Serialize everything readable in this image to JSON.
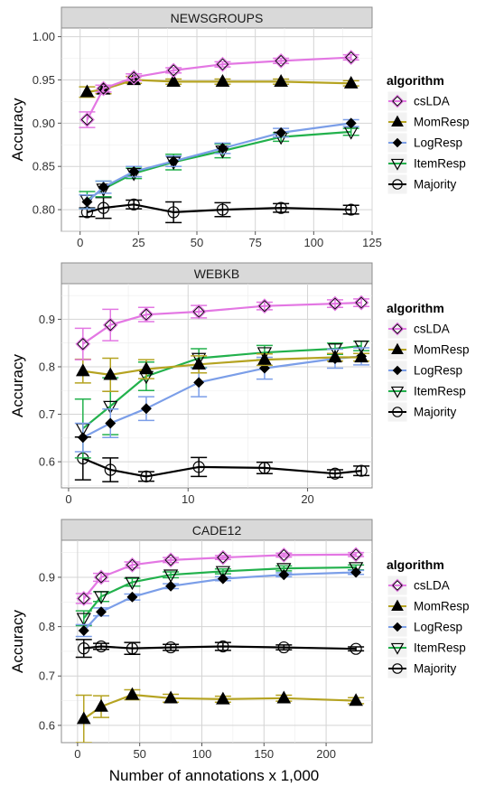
{
  "figure": {
    "xlabel": "Number of annotations x 1,000",
    "ylabel": "Accuracy",
    "legend_title": "algorithm"
  },
  "legend_entries": [
    {
      "name": "csLDA",
      "color": "#e377e3",
      "marker": "diamond-open"
    },
    {
      "name": "MomResp",
      "color": "#b5a321",
      "marker": "triangle-filled"
    },
    {
      "name": "LogResp",
      "color": "#7b9ee8",
      "marker": "diamond-filled"
    },
    {
      "name": "ItemResp",
      "color": "#22b14c",
      "marker": "triangle-down-open"
    },
    {
      "name": "Majority",
      "color": "#000000",
      "marker": "circle-open"
    }
  ],
  "chart_data": [
    {
      "type": "line",
      "title": "NEWSGROUPS",
      "xlim": [
        -8,
        125
      ],
      "ylim": [
        0.775,
        1.01
      ],
      "xticks": [
        0,
        25,
        50,
        75,
        100,
        125
      ],
      "yticks": [
        0.8,
        0.85,
        0.9,
        0.95,
        1.0
      ],
      "ytick_labels": [
        "0.80",
        "0.85",
        "0.90",
        "0.95",
        "1.00"
      ],
      "grid": true,
      "legend": "right",
      "series": [
        {
          "name": "csLDA",
          "x": [
            3,
            10,
            23,
            40,
            61,
            86,
            116
          ],
          "y": [
            0.904,
            0.94,
            0.953,
            0.961,
            0.968,
            0.972,
            0.976
          ],
          "err": [
            0.009,
            0.004,
            0.004,
            0.003,
            0.003,
            0.003,
            0.003
          ]
        },
        {
          "name": "MomResp",
          "x": [
            3,
            10,
            23,
            40,
            61,
            86,
            116
          ],
          "y": [
            0.936,
            0.939,
            0.95,
            0.948,
            0.948,
            0.948,
            0.946
          ],
          "err": [
            0.006,
            0.005,
            0.004,
            0.003,
            0.003,
            0.003,
            0.003
          ]
        },
        {
          "name": "LogResp",
          "x": [
            3,
            10,
            23,
            40,
            61,
            86,
            116
          ],
          "y": [
            0.809,
            0.826,
            0.844,
            0.856,
            0.871,
            0.889,
            0.9
          ],
          "err": [
            0.008,
            0.007,
            0.006,
            0.006,
            0.006,
            0.005,
            0.004
          ]
        },
        {
          "name": "ItemResp",
          "x": [
            3,
            10,
            23,
            40,
            61,
            86,
            116
          ],
          "y": [
            0.811,
            0.824,
            0.842,
            0.855,
            0.868,
            0.884,
            0.89
          ],
          "err": [
            0.01,
            0.009,
            0.006,
            0.009,
            0.008,
            0.005,
            0.004
          ]
        },
        {
          "name": "Majority",
          "x": [
            3,
            10,
            23,
            40,
            61,
            86,
            116
          ],
          "y": [
            0.797,
            0.802,
            0.806,
            0.797,
            0.8,
            0.802,
            0.8
          ],
          "err": [
            0.005,
            0.012,
            0.005,
            0.012,
            0.008,
            0.005,
            0.005
          ]
        }
      ]
    },
    {
      "type": "line",
      "title": "WEBKB",
      "xlim": [
        -0.6,
        25.4
      ],
      "ylim": [
        0.545,
        0.975
      ],
      "xticks": [
        0,
        10,
        20
      ],
      "yticks": [
        0.6,
        0.7,
        0.8,
        0.9
      ],
      "ytick_labels": [
        "0.6",
        "0.7",
        "0.8",
        "0.9"
      ],
      "grid": true,
      "legend": "right",
      "series": [
        {
          "name": "csLDA",
          "x": [
            1.2,
            3.5,
            6.5,
            10.9,
            16.4,
            22.3,
            24.5
          ],
          "y": [
            0.848,
            0.888,
            0.91,
            0.916,
            0.928,
            0.933,
            0.935
          ],
          "err": [
            0.033,
            0.033,
            0.015,
            0.013,
            0.008,
            0.008,
            0.008
          ]
        },
        {
          "name": "MomResp",
          "x": [
            1.2,
            3.5,
            6.5,
            10.9,
            16.4,
            22.3,
            24.5
          ],
          "y": [
            0.791,
            0.783,
            0.795,
            0.805,
            0.815,
            0.82,
            0.82
          ],
          "err": [
            0.025,
            0.035,
            0.02,
            0.018,
            0.012,
            0.008,
            0.008
          ]
        },
        {
          "name": "LogResp",
          "x": [
            1.2,
            3.5,
            6.5,
            10.9,
            16.4,
            22.3,
            24.5
          ],
          "y": [
            0.651,
            0.681,
            0.712,
            0.767,
            0.797,
            0.817,
            0.822
          ],
          "err": [
            0.03,
            0.03,
            0.025,
            0.03,
            0.023,
            0.02,
            0.018
          ]
        },
        {
          "name": "ItemResp",
          "x": [
            1.2,
            3.5,
            6.5,
            10.9,
            16.4,
            22.3,
            24.5
          ],
          "y": [
            0.67,
            0.717,
            0.78,
            0.818,
            0.83,
            0.838,
            0.844
          ],
          "err": [
            0.062,
            0.06,
            0.03,
            0.02,
            0.015,
            0.012,
            0.01
          ]
        },
        {
          "name": "Majority",
          "x": [
            1.2,
            3.5,
            6.5,
            10.9,
            16.4,
            22.3,
            24.5
          ],
          "y": [
            0.607,
            0.583,
            0.569,
            0.589,
            0.587,
            0.575,
            0.581
          ],
          "err": [
            0.045,
            0.025,
            0.01,
            0.02,
            0.012,
            0.008,
            0.01
          ]
        }
      ]
    },
    {
      "type": "line",
      "title": "CADE12",
      "xlim": [
        -13,
        237
      ],
      "ylim": [
        0.565,
        0.975
      ],
      "xticks": [
        0,
        50,
        100,
        150,
        200
      ],
      "yticks": [
        0.6,
        0.7,
        0.8,
        0.9
      ],
      "ytick_labels": [
        "0.6",
        "0.7",
        "0.8",
        "0.9"
      ],
      "grid": true,
      "legend": "right",
      "series": [
        {
          "name": "csLDA",
          "x": [
            5,
            19,
            44,
            75,
            117,
            166,
            224
          ],
          "y": [
            0.857,
            0.9,
            0.925,
            0.935,
            0.94,
            0.945,
            0.946
          ],
          "err": [
            0.01,
            0.008,
            0.006,
            0.005,
            0.004,
            0.004,
            0.004
          ]
        },
        {
          "name": "MomResp",
          "x": [
            5,
            19,
            44,
            75,
            117,
            166,
            224
          ],
          "y": [
            0.613,
            0.638,
            0.662,
            0.655,
            0.653,
            0.655,
            0.65
          ],
          "err": [
            0.048,
            0.022,
            0.01,
            0.008,
            0.006,
            0.006,
            0.006
          ]
        },
        {
          "name": "LogResp",
          "x": [
            5,
            19,
            44,
            75,
            117,
            166,
            224
          ],
          "y": [
            0.792,
            0.83,
            0.86,
            0.882,
            0.897,
            0.905,
            0.91
          ],
          "err": [
            0.012,
            0.008,
            0.006,
            0.005,
            0.004,
            0.004,
            0.004
          ]
        },
        {
          "name": "ItemResp",
          "x": [
            5,
            19,
            44,
            75,
            117,
            166,
            224
          ],
          "y": [
            0.817,
            0.861,
            0.89,
            0.905,
            0.912,
            0.918,
            0.92
          ],
          "err": [
            0.015,
            0.01,
            0.008,
            0.006,
            0.005,
            0.005,
            0.005
          ]
        },
        {
          "name": "Majority",
          "x": [
            5,
            19,
            44,
            75,
            117,
            166,
            224
          ],
          "y": [
            0.756,
            0.76,
            0.756,
            0.758,
            0.76,
            0.758,
            0.755
          ],
          "err": [
            0.018,
            0.006,
            0.012,
            0.006,
            0.008,
            0.005,
            0.004
          ]
        }
      ]
    }
  ]
}
